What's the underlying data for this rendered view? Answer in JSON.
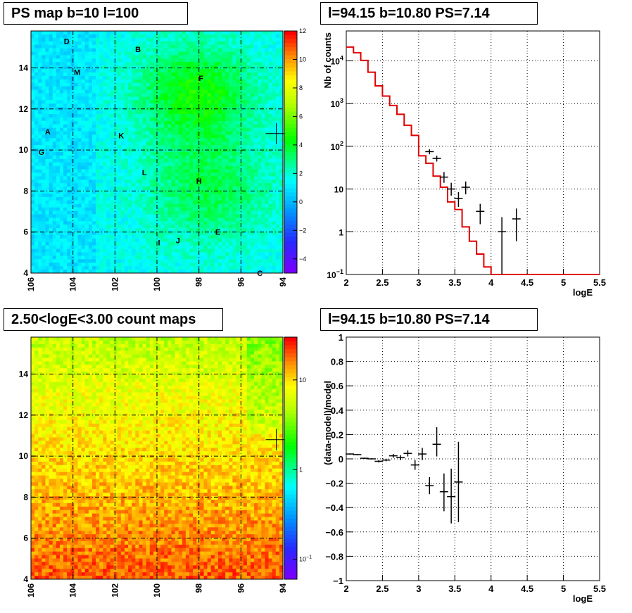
{
  "titles": {
    "top_left": "PS map b=10 l=100",
    "top_right": "l=94.15 b=10.80 PS=7.14",
    "bottom_left": "2.50<logE<3.00 count maps",
    "bottom_right": "l=94.15 b=10.80 PS=7.14"
  },
  "colors": {
    "histogram_line": "#e00000",
    "data_points": "#000000",
    "grid": "#000000",
    "map_low": "#00ffff",
    "map_high": "#ff0000"
  },
  "chart_data": [
    {
      "type": "heatmap",
      "name": "ps-map",
      "xlabel": "",
      "ylabel": "",
      "xlim": [
        106,
        94
      ],
      "ylim": [
        4,
        15.8
      ],
      "x_ticks": [
        "106",
        "104",
        "102",
        "100",
        "98",
        "96",
        "94"
      ],
      "y_ticks": [
        "4",
        "6",
        "8",
        "10",
        "12",
        "14"
      ],
      "colorbar_range": [
        -5,
        12
      ],
      "colorbar_ticks": [
        "12",
        "10",
        "8",
        "6",
        "4",
        "2",
        "0",
        "−2",
        "−4"
      ],
      "source_labels": [
        {
          "label": "D",
          "l": 104.3,
          "b": 15.3
        },
        {
          "label": "B",
          "l": 100.9,
          "b": 14.9
        },
        {
          "label": "M",
          "l": 103.8,
          "b": 13.8
        },
        {
          "label": "F",
          "l": 97.9,
          "b": 13.5
        },
        {
          "label": "A",
          "l": 105.2,
          "b": 10.9
        },
        {
          "label": "K",
          "l": 101.7,
          "b": 10.7
        },
        {
          "label": "G",
          "l": 105.5,
          "b": 9.9
        },
        {
          "label": "L",
          "l": 100.6,
          "b": 8.9
        },
        {
          "label": "H",
          "l": 98.0,
          "b": 8.5
        },
        {
          "label": "E",
          "l": 97.1,
          "b": 6.0
        },
        {
          "label": "I",
          "l": 99.9,
          "b": 5.5
        },
        {
          "label": "J",
          "l": 99.0,
          "b": 5.6
        },
        {
          "label": "C",
          "l": 95.1,
          "b": 4.0
        }
      ],
      "marker": {
        "l": 94.15,
        "b": 10.8
      }
    },
    {
      "type": "line",
      "name": "counts-spectrum",
      "xlabel": "logE",
      "ylabel": "Nb of counts",
      "xlim": [
        2,
        5.5
      ],
      "ylim": [
        0.1,
        50000
      ],
      "yscale": "log",
      "x_ticks": [
        "2",
        "2.5",
        "3",
        "3.5",
        "4",
        "4.5",
        "5",
        "5.5"
      ],
      "y_ticks": [
        {
          "v": 0.1,
          "base": "10",
          "exp": "−1"
        },
        {
          "v": 1,
          "base": "1",
          "exp": ""
        },
        {
          "v": 10,
          "base": "10",
          "exp": ""
        },
        {
          "v": 100,
          "base": "10",
          "exp": "2"
        },
        {
          "v": 1000,
          "base": "10",
          "exp": "3"
        },
        {
          "v": 10000,
          "base": "10",
          "exp": "4"
        }
      ],
      "model_bin_edges": [
        2.0,
        2.1,
        2.2,
        2.3,
        2.4,
        2.5,
        2.6,
        2.7,
        2.8,
        2.9,
        3.0,
        3.1,
        3.2,
        3.3,
        3.4,
        3.5,
        3.6,
        3.7,
        3.8,
        3.9,
        4.0,
        4.1,
        4.2,
        4.3,
        4.4,
        4.5,
        4.6,
        4.7,
        4.8,
        4.9,
        5.0,
        5.1,
        5.2,
        5.3,
        5.4,
        5.5
      ],
      "model_values": [
        21000,
        15500,
        10200,
        5400,
        2600,
        1500,
        900,
        560,
        310,
        180,
        60,
        40,
        20,
        11,
        5,
        3.3,
        1.3,
        0.6,
        0.3,
        0.15,
        0.1,
        0.1,
        0.1,
        0.1,
        0.1,
        0.1,
        0.1,
        0.1,
        0.1,
        0.1,
        0.1,
        0.1,
        0.1,
        0.1,
        0.1
      ],
      "data_points": [
        {
          "x": 3.15,
          "y": 75,
          "ylo": 65,
          "yhi": 85
        },
        {
          "x": 3.25,
          "y": 52,
          "ylo": 44,
          "yhi": 60
        },
        {
          "x": 3.35,
          "y": 19,
          "ylo": 14,
          "yhi": 25
        },
        {
          "x": 3.45,
          "y": 10,
          "ylo": 7,
          "yhi": 14
        },
        {
          "x": 3.55,
          "y": 6,
          "ylo": 3.8,
          "yhi": 8.5
        },
        {
          "x": 3.65,
          "y": 11,
          "ylo": 7.5,
          "yhi": 15
        },
        {
          "x": 3.85,
          "y": 3,
          "ylo": 1.5,
          "yhi": 4.5
        },
        {
          "x": 4.15,
          "y": 1,
          "ylo": 0.1,
          "yhi": 2.2
        },
        {
          "x": 4.35,
          "y": 2,
          "ylo": 0.6,
          "yhi": 3.5
        }
      ]
    },
    {
      "type": "heatmap",
      "name": "count-map",
      "xlabel": "",
      "ylabel": "",
      "xlim": [
        106,
        94
      ],
      "ylim": [
        4,
        15.8
      ],
      "x_ticks": [
        "106",
        "104",
        "102",
        "100",
        "98",
        "96",
        "94"
      ],
      "y_ticks": [
        "4",
        "6",
        "8",
        "10",
        "12",
        "14"
      ],
      "colorbar_scale": "log",
      "colorbar_ticks": [
        {
          "v": 10,
          "base": "10",
          "exp": ""
        },
        {
          "v": 1,
          "base": "1",
          "exp": ""
        },
        {
          "v": 0.1,
          "base": "10",
          "exp": "−1"
        }
      ],
      "marker": {
        "l": 94.15,
        "b": 10.8
      }
    },
    {
      "type": "scatter",
      "name": "residuals",
      "xlabel": "logE",
      "ylabel": "(data-model)/model",
      "xlim": [
        2,
        5.5
      ],
      "ylim": [
        -1,
        1
      ],
      "x_ticks": [
        "2",
        "2.5",
        "3",
        "3.5",
        "4",
        "4.5",
        "5",
        "5.5"
      ],
      "y_ticks": [
        "1",
        "0.8",
        "0.6",
        "0.4",
        "0.2",
        "0",
        "−0.2",
        "−0.4",
        "−0.6",
        "−0.8",
        "−1"
      ],
      "data_points": [
        {
          "x": 2.05,
          "y": 0.04,
          "ylo": 0.035,
          "yhi": 0.045
        },
        {
          "x": 2.15,
          "y": 0.035,
          "ylo": 0.03,
          "yhi": 0.04
        },
        {
          "x": 2.25,
          "y": 0.005,
          "ylo": 0.0,
          "yhi": 0.01
        },
        {
          "x": 2.35,
          "y": 0.0,
          "ylo": -0.005,
          "yhi": 0.005
        },
        {
          "x": 2.45,
          "y": -0.02,
          "ylo": -0.03,
          "yhi": -0.01
        },
        {
          "x": 2.55,
          "y": -0.01,
          "ylo": -0.02,
          "yhi": 0.0
        },
        {
          "x": 2.65,
          "y": 0.025,
          "ylo": 0.01,
          "yhi": 0.04
        },
        {
          "x": 2.75,
          "y": 0.01,
          "ylo": -0.01,
          "yhi": 0.03
        },
        {
          "x": 2.85,
          "y": 0.045,
          "ylo": 0.02,
          "yhi": 0.07
        },
        {
          "x": 2.95,
          "y": -0.05,
          "ylo": -0.09,
          "yhi": -0.01
        },
        {
          "x": 3.05,
          "y": 0.04,
          "ylo": -0.01,
          "yhi": 0.09
        },
        {
          "x": 3.15,
          "y": -0.22,
          "ylo": -0.29,
          "yhi": -0.15
        },
        {
          "x": 3.25,
          "y": 0.12,
          "ylo": 0.02,
          "yhi": 0.26
        },
        {
          "x": 3.35,
          "y": -0.27,
          "ylo": -0.43,
          "yhi": -0.12
        },
        {
          "x": 3.45,
          "y": -0.31,
          "ylo": -0.53,
          "yhi": -0.08
        },
        {
          "x": 3.55,
          "y": -0.19,
          "ylo": -0.52,
          "yhi": 0.14
        }
      ]
    }
  ]
}
